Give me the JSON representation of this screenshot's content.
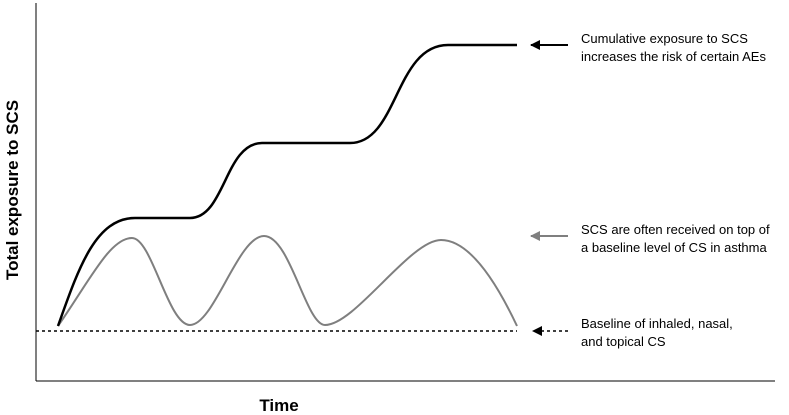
{
  "diagram": {
    "y_axis_label": "Total exposure to SCS",
    "x_axis_label": "Time",
    "curves": [
      {
        "name": "Cumulative SCS exposure",
        "color": "#000000",
        "style": "solid"
      },
      {
        "name": "SCS courses on top of baseline",
        "color": "#7f7f7f",
        "style": "solid"
      },
      {
        "name": "Baseline CS",
        "color": "#000000",
        "style": "dotted"
      }
    ],
    "annotations": [
      {
        "arrow_color": "#000000",
        "line1": "Cumulative exposure to SCS",
        "line2": "increases the risk of certain AEs"
      },
      {
        "arrow_color": "#7f7f7f",
        "line1": "SCS are often received on top of",
        "line2": "a baseline level of CS in asthma"
      },
      {
        "arrow_color": "#000000",
        "arrow_style": "dashed",
        "line1": "Baseline of inhaled, nasal,",
        "line2": "and topical CS"
      }
    ]
  }
}
